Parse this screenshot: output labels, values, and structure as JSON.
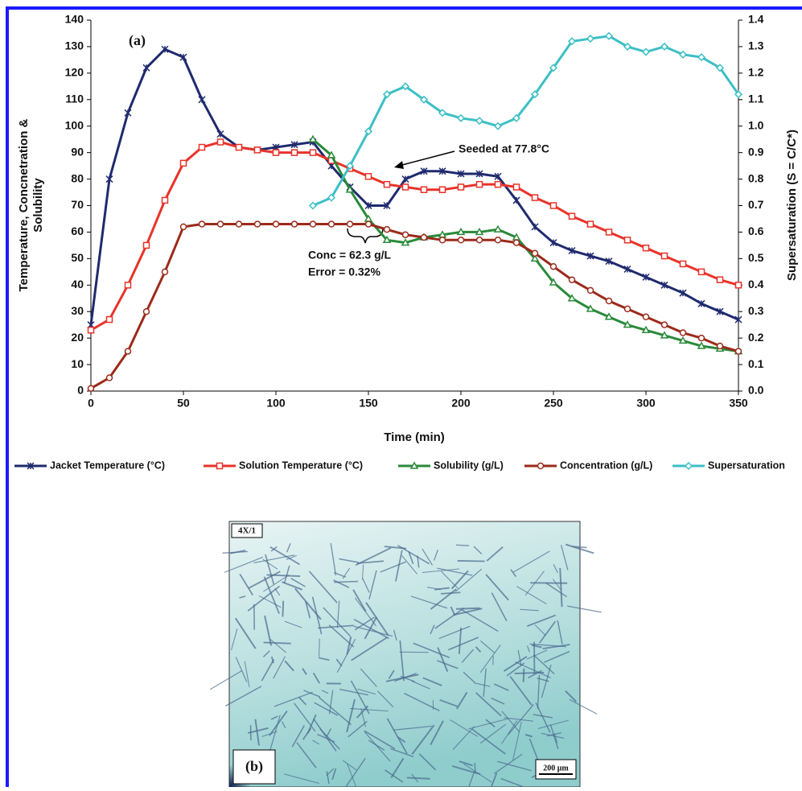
{
  "chart_data": {
    "type": "line",
    "panel_label": "(a)",
    "xlabel": "Time (min)",
    "ylabel": [
      "Temperature, Concnetration &",
      "Solubility"
    ],
    "y2label": "Supersaturation (S = C/C*)",
    "xlim": [
      0,
      350
    ],
    "xticks": [
      0,
      50,
      100,
      150,
      200,
      250,
      300,
      350
    ],
    "ylim": [
      0,
      140
    ],
    "yticks": [
      0,
      10,
      20,
      30,
      40,
      50,
      60,
      70,
      80,
      90,
      100,
      110,
      120,
      130,
      140
    ],
    "y2lim": [
      0,
      1.4
    ],
    "y2ticks": [
      {
        "value": 0,
        "label": "0.0"
      },
      {
        "value": 0.1,
        "label": "0.1"
      },
      {
        "value": 0.2,
        "label": "0.2"
      },
      {
        "value": 0.3,
        "label": "0.3"
      },
      {
        "value": 0.4,
        "label": "0.4"
      },
      {
        "value": 0.5,
        "label": "0.5"
      },
      {
        "value": 0.6,
        "label": "0.6"
      },
      {
        "value": 0.7,
        "label": "0.7"
      },
      {
        "value": 0.8,
        "label": "0.8"
      },
      {
        "value": 0.9,
        "label": "0.9"
      },
      {
        "value": 1,
        "label": "1.0"
      },
      {
        "value": 1.1,
        "label": "1.1"
      },
      {
        "value": 1.2,
        "label": "1.2"
      },
      {
        "value": 1.3,
        "label": "1.3"
      },
      {
        "value": 1.4,
        "label": "1.4"
      }
    ],
    "x": [
      0,
      10,
      20,
      30,
      40,
      50,
      60,
      70,
      80,
      90,
      100,
      110,
      120,
      130,
      140,
      150,
      160,
      170,
      180,
      190,
      200,
      210,
      220,
      230,
      240,
      250,
      260,
      270,
      280,
      290,
      300,
      310,
      320,
      330,
      340,
      350
    ],
    "series": [
      {
        "name": "Jacket Temperature (°C)",
        "color": "#1f2a6e",
        "marker": "star",
        "values": [
          25,
          80,
          105,
          122,
          129,
          126,
          110,
          97,
          92,
          91,
          92,
          93,
          94,
          85,
          77,
          70,
          70,
          80,
          83,
          83,
          82,
          82,
          81,
          72,
          62,
          56,
          53,
          51,
          49,
          46,
          43,
          40,
          37,
          33,
          30,
          27
        ]
      },
      {
        "name": "Solution Temperature (°C)",
        "color": "#e8332a",
        "marker": "square",
        "values": [
          23,
          27,
          40,
          55,
          72,
          86,
          92,
          94,
          92,
          91,
          90,
          90,
          90,
          87,
          84,
          81,
          78,
          77,
          76,
          76,
          77,
          78,
          78,
          77,
          73,
          70,
          66,
          63,
          60,
          57,
          54,
          51,
          48,
          45,
          42,
          40
        ]
      },
      {
        "name": "Solubility (g/L)",
        "color": "#2a8a3a",
        "marker": "triangle",
        "values": [
          null,
          null,
          null,
          null,
          null,
          null,
          null,
          null,
          null,
          null,
          null,
          null,
          95,
          89,
          76,
          65,
          57,
          56,
          58,
          59,
          60,
          60,
          61,
          58,
          50,
          41,
          35,
          31,
          28,
          25,
          23,
          21,
          19,
          17,
          16,
          15
        ]
      },
      {
        "name": "Concentration (g/L)",
        "color": "#9b2a1a",
        "marker": "circle",
        "values": [
          1,
          5,
          15,
          30,
          45,
          62,
          63,
          63,
          63,
          63,
          63,
          63,
          63,
          63,
          63,
          63,
          61,
          59,
          58,
          57,
          57,
          57,
          57,
          56,
          52,
          47,
          42,
          38,
          34,
          31,
          28,
          25,
          22,
          20,
          17,
          15
        ]
      },
      {
        "name": "Supersaturation",
        "color": "#3bbfc4",
        "marker": "diamond",
        "axis": "y2",
        "values": [
          null,
          null,
          null,
          null,
          null,
          null,
          null,
          null,
          null,
          null,
          null,
          null,
          0.7,
          0.73,
          0.85,
          0.98,
          1.12,
          1.15,
          1.1,
          1.05,
          1.03,
          1.02,
          1.0,
          1.03,
          1.12,
          1.22,
          1.32,
          1.33,
          1.34,
          1.3,
          1.28,
          1.3,
          1.27,
          1.26,
          1.22,
          1.12
        ]
      }
    ],
    "annotations": {
      "seeded": "Seeded at 77.8°C",
      "conc": "Conc = 62.3 g/L",
      "error": "Error = 0.32%"
    }
  },
  "image": {
    "magnification": "4X/1",
    "panel_label": "(b)",
    "scale_bar": "200 μm"
  }
}
